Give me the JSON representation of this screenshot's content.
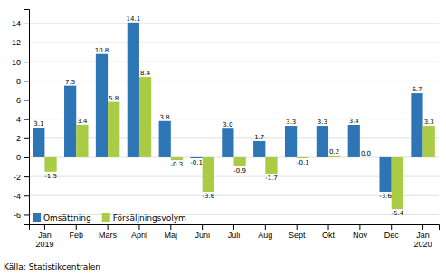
{
  "chart_data": {
    "type": "bar",
    "categories": [
      "Jan\n2019",
      "Feb",
      "Mars",
      "April",
      "Maj",
      "Juni",
      "Juli",
      "Aug",
      "Sept",
      "Okt",
      "Nov",
      "Dec",
      "Jan\n2020"
    ],
    "series": [
      {
        "name": "Omsättning",
        "color": "#2E75B6",
        "values": [
          3.1,
          7.5,
          10.8,
          14.1,
          3.8,
          -0.1,
          3.0,
          1.7,
          3.3,
          3.3,
          3.4,
          -3.6,
          6.7
        ],
        "value_labels": [
          "3.1",
          "7.5",
          "10.8",
          "14.1",
          "3.8",
          "-0.1",
          "3.0",
          "1.7",
          "3.3",
          "3.3",
          "3.4",
          "-3.6",
          "6.7"
        ]
      },
      {
        "name": "Försäljningsvolym",
        "color": "#AACC44",
        "values": [
          -1.5,
          3.4,
          5.8,
          8.4,
          -0.3,
          -3.6,
          -0.9,
          -1.7,
          -0.1,
          0.2,
          0.0,
          -5.4,
          3.3
        ],
        "value_labels": [
          "-1.5",
          "3.4",
          "5.8",
          "8.4",
          "-0.3",
          "-3.6",
          "-0.9",
          "-1.7",
          "-0.1",
          "0.2",
          "0.0",
          "-5.4",
          "3.3"
        ]
      }
    ],
    "ylim": [
      -7,
      15.5
    ],
    "yticks": [
      -6,
      -4,
      -2,
      0,
      2,
      4,
      6,
      8,
      10,
      12,
      14
    ],
    "grid": true,
    "legend": "lower left",
    "data_labels": true,
    "annotations": [
      "Källa: Statistikcentralen"
    ]
  }
}
